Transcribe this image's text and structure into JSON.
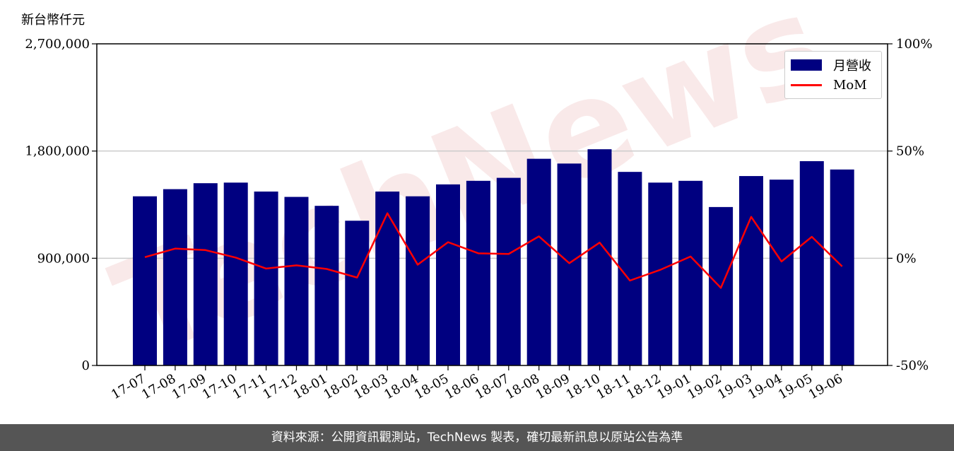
{
  "header": {
    "unit_label": "新台幣仟元"
  },
  "footer": {
    "source_text": "資料來源：公開資訊觀測站，TechNews 製表，確切最新訊息以原站公告為準"
  },
  "watermark": "TechNews",
  "chart_data": {
    "type": "bar",
    "categories": [
      "17-07",
      "17-08",
      "17-09",
      "17-10",
      "17-11",
      "17-12",
      "18-01",
      "18-02",
      "18-03",
      "18-04",
      "18-05",
      "18-06",
      "18-07",
      "18-08",
      "18-09",
      "18-10",
      "18-11",
      "18-12",
      "19-01",
      "19-02",
      "19-03",
      "19-04",
      "19-05",
      "19-06"
    ],
    "series": [
      {
        "name": "月營收",
        "axis": "left",
        "type": "bar",
        "color": "#000080",
        "values": [
          1420000,
          1480000,
          1530000,
          1535000,
          1460000,
          1415000,
          1340000,
          1215000,
          1460000,
          1420000,
          1520000,
          1550000,
          1575000,
          1735000,
          1695000,
          1815000,
          1625000,
          1535000,
          1550000,
          1330000,
          1590000,
          1560000,
          1715000,
          1645000
        ]
      },
      {
        "name": "MoM",
        "axis": "right",
        "type": "line",
        "color": "#ff0000",
        "values": [
          0.5,
          4.5,
          3.8,
          0.3,
          -4.8,
          -3.3,
          -5.0,
          -9.0,
          21.0,
          -3.0,
          7.5,
          2.3,
          2.0,
          10.2,
          -2.3,
          7.3,
          -10.4,
          -5.4,
          0.8,
          -13.8,
          19.3,
          -1.5,
          10.0,
          -3.8
        ]
      }
    ],
    "y_left": {
      "min": 0,
      "max": 2700000,
      "ticks": [
        0,
        900000,
        1800000,
        2700000
      ],
      "tick_labels": [
        "0",
        "900,000",
        "1,800,000",
        "2,700,000"
      ]
    },
    "y_right": {
      "min": -50,
      "max": 100,
      "ticks": [
        -50,
        0,
        50,
        100
      ],
      "tick_labels": [
        "-50%",
        "0%",
        "50%",
        "100%"
      ]
    },
    "grid": "horizontal at 900,000 and 1,800,000",
    "legend_position": "top-right",
    "legend_items": [
      "月營收",
      "MoM"
    ]
  }
}
